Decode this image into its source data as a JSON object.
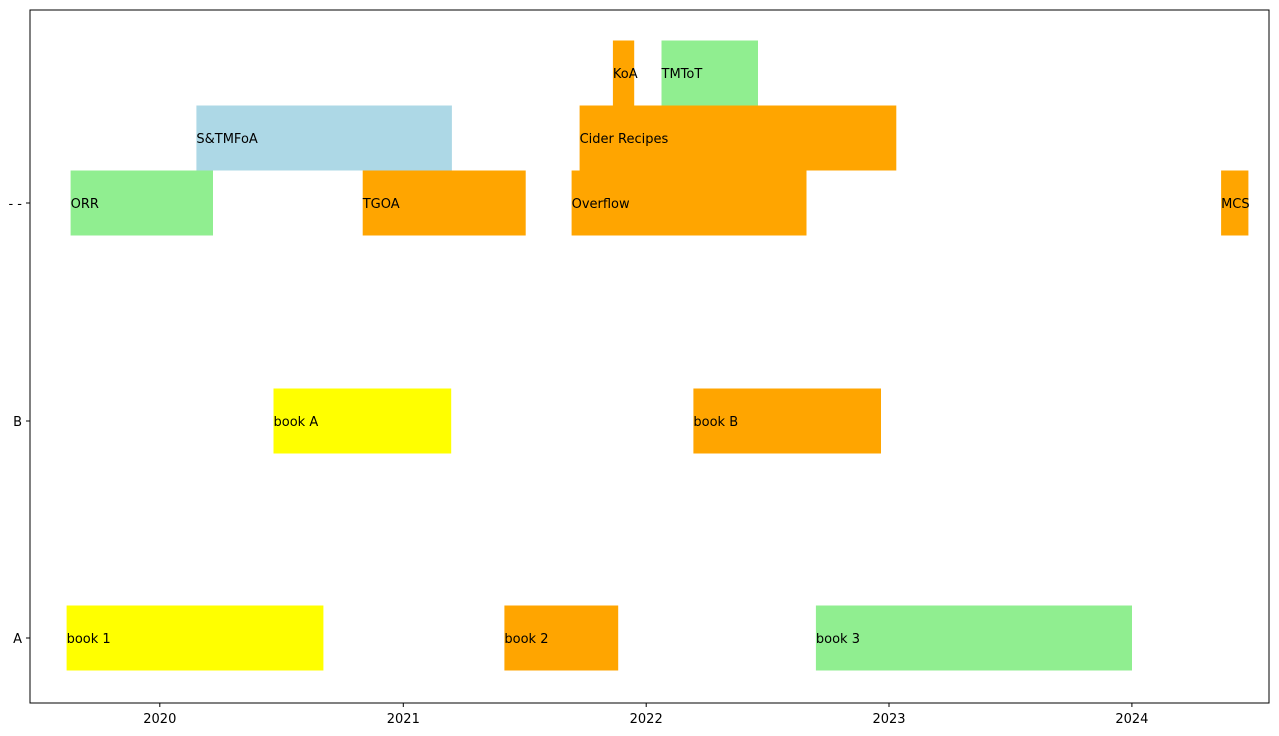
{
  "chart_data": {
    "type": "timeline",
    "title": "",
    "xlabel": "",
    "ylabel": "",
    "x_ticks": [
      "2020",
      "2021",
      "2022",
      "2023",
      "2024"
    ],
    "x_range": [
      "2019-06-20",
      "2024-07-25"
    ],
    "categories": [
      "A",
      "B",
      "- -"
    ],
    "bars": [
      {
        "label": "book 1",
        "category": "A",
        "start": "2019-08-14",
        "end": "2020-09-03",
        "row": 0,
        "color": "#ffff00"
      },
      {
        "label": "book 2",
        "category": "A",
        "start": "2021-06-02",
        "end": "2021-11-20",
        "row": 0,
        "color": "#ffa500"
      },
      {
        "label": "book 3",
        "category": "A",
        "start": "2022-09-13",
        "end": "2024-01-01",
        "row": 0,
        "color": "#90ee90"
      },
      {
        "label": "book A",
        "category": "B",
        "start": "2020-06-20",
        "end": "2021-03-14",
        "row": 0,
        "color": "#ffff00"
      },
      {
        "label": "book B",
        "category": "B",
        "start": "2022-03-13",
        "end": "2022-12-20",
        "row": 0,
        "color": "#ffa500"
      },
      {
        "label": "ORR",
        "category": "- -",
        "start": "2019-08-20",
        "end": "2020-03-21",
        "row": 0,
        "color": "#90ee90"
      },
      {
        "label": "TGOA",
        "category": "- -",
        "start": "2020-11-01",
        "end": "2021-07-04",
        "row": 0,
        "color": "#ffa500"
      },
      {
        "label": "Overflow",
        "category": "- -",
        "start": "2021-09-11",
        "end": "2022-08-30",
        "row": 0,
        "color": "#ffa500"
      },
      {
        "label": "MCS",
        "category": "- -",
        "start": "2024-05-14",
        "end": "2024-06-24",
        "row": 0,
        "color": "#ffa500"
      },
      {
        "label": "S&TMFoA",
        "category": "- -",
        "start": "2020-02-25",
        "end": "2021-03-15",
        "row": 1,
        "color": "#add8e6"
      },
      {
        "label": "Cider Recipes",
        "category": "- -",
        "start": "2021-09-23",
        "end": "2023-01-12",
        "row": 1,
        "color": "#ffa500"
      },
      {
        "label": "KoA",
        "category": "- -",
        "start": "2021-11-12",
        "end": "2021-12-14",
        "row": 2,
        "color": "#ffa500"
      },
      {
        "label": "TMToT",
        "category": "- -",
        "start": "2022-01-24",
        "end": "2022-06-18",
        "row": 2,
        "color": "#90ee90"
      }
    ]
  }
}
